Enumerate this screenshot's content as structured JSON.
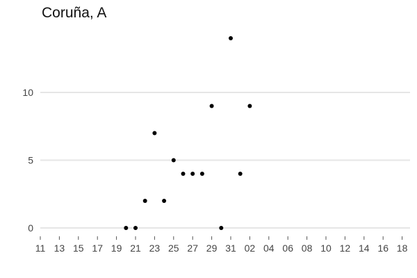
{
  "chart_data": {
    "type": "scatter",
    "title": "Coruña, A",
    "xlabel": "",
    "ylabel": "",
    "x_tick_labels": [
      "11",
      "13",
      "15",
      "17",
      "19",
      "21",
      "23",
      "25",
      "27",
      "29",
      "31",
      "02",
      "04",
      "06",
      "08",
      "10",
      "12",
      "14",
      "16",
      "18"
    ],
    "y_ticks": [
      0,
      5,
      10
    ],
    "ylim": [
      -0.6,
      15.2
    ],
    "grid": "horizontal",
    "x_axis_unit": "day (consecutive days, month rollover after 31)",
    "points": [
      {
        "x": "20",
        "y": 0
      },
      {
        "x": "21",
        "y": 0
      },
      {
        "x": "22",
        "y": 2
      },
      {
        "x": "23",
        "y": 7
      },
      {
        "x": "24",
        "y": 2
      },
      {
        "x": "25",
        "y": 5
      },
      {
        "x": "26",
        "y": 4
      },
      {
        "x": "27",
        "y": 4
      },
      {
        "x": "28",
        "y": 4
      },
      {
        "x": "29",
        "y": 9
      },
      {
        "x": "30",
        "y": 0
      },
      {
        "x": "31",
        "y": 14
      },
      {
        "x": "01",
        "y": 4
      },
      {
        "x": "02",
        "y": 9
      }
    ],
    "colors": {
      "points": "#000000",
      "grid": "#e6e6e6",
      "text": "#444444"
    }
  }
}
